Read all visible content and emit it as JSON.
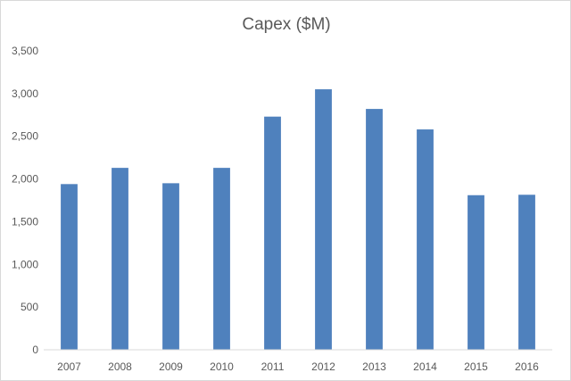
{
  "chart_data": {
    "type": "bar",
    "title": "Capex ($M)",
    "xlabel": "",
    "ylabel": "",
    "categories": [
      "2007",
      "2008",
      "2009",
      "2010",
      "2011",
      "2012",
      "2013",
      "2014",
      "2015",
      "2016"
    ],
    "values": [
      1940,
      2130,
      1950,
      2130,
      2730,
      3050,
      2820,
      2580,
      1810,
      1815
    ],
    "ylim": [
      0,
      3500
    ],
    "yticks": [
      0,
      500,
      1000,
      1500,
      2000,
      2500,
      3000,
      3500
    ],
    "ytick_labels": [
      "0",
      "500",
      "1,000",
      "1,500",
      "2,000",
      "2,500",
      "3,000",
      "3,500"
    ],
    "grid": false,
    "legend": "none",
    "colors": {
      "bar": "#4f81bd",
      "axis": "#d9d9d9",
      "text": "#595959"
    }
  }
}
